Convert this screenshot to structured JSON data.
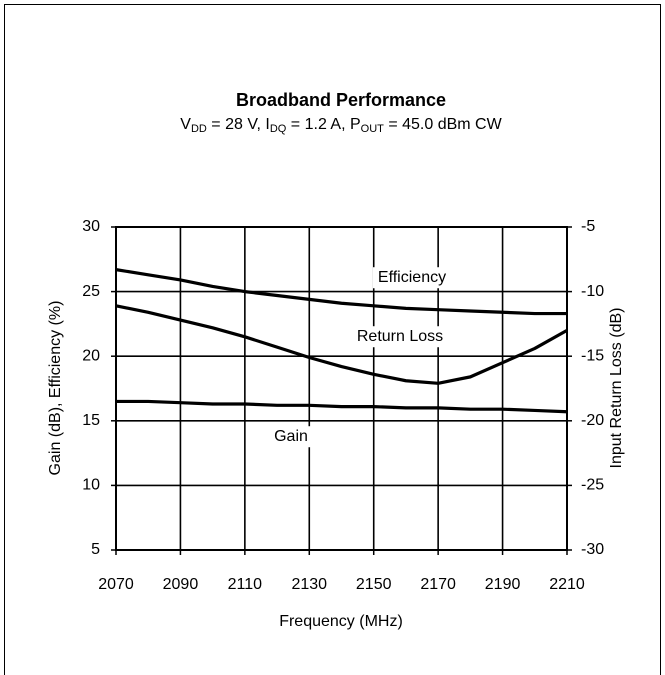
{
  "chart_data": {
    "type": "line",
    "title": "Broadband Performance",
    "subtitle": [
      {
        "text": "V"
      },
      {
        "text": "DD",
        "sub": true
      },
      {
        "text": " = 28 V, I"
      },
      {
        "text": "DQ",
        "sub": true
      },
      {
        "text": " = 1.2 A, P"
      },
      {
        "text": "OUT",
        "sub": true
      },
      {
        "text": " = 45.0 dBm CW"
      }
    ],
    "xlabel": "Frequency (MHz)",
    "ylabel": "Gain (dB), Efficiency (%)",
    "y2label": "Input Return Loss (dB)",
    "x": [
      2070,
      2080,
      2090,
      2100,
      2110,
      2120,
      2130,
      2140,
      2150,
      2160,
      2170,
      2180,
      2190,
      2200,
      2210
    ],
    "series": [
      {
        "name": "Efficiency",
        "color": "#000000",
        "values": [
          26.7,
          26.3,
          25.9,
          25.4,
          25.0,
          24.7,
          24.4,
          24.1,
          23.9,
          23.7,
          23.6,
          23.5,
          23.4,
          23.3,
          23.3
        ]
      },
      {
        "name": "Return Loss",
        "color": "#000000",
        "axis": "y2",
        "values": [
          -11.1,
          -11.6,
          -12.2,
          -12.8,
          -13.5,
          -14.3,
          -15.1,
          -15.8,
          -16.4,
          -16.9,
          -17.1,
          -16.6,
          -15.5,
          -14.4,
          -13.0
        ]
      },
      {
        "name": "Gain",
        "color": "#000000",
        "values": [
          16.5,
          16.5,
          16.4,
          16.3,
          16.3,
          16.2,
          16.2,
          16.1,
          16.1,
          16.0,
          16.0,
          15.9,
          15.9,
          15.8,
          15.7
        ]
      }
    ],
    "xlim": [
      2070,
      2210
    ],
    "xticks": [
      2070,
      2090,
      2110,
      2130,
      2150,
      2170,
      2190,
      2210
    ],
    "ylim": [
      5,
      30
    ],
    "yticks": [
      5,
      10,
      15,
      20,
      25,
      30
    ],
    "y2lim": [
      -30,
      -5
    ],
    "y2ticks": [
      -30,
      -25,
      -20,
      -15,
      -10,
      -5
    ],
    "grid": true
  }
}
